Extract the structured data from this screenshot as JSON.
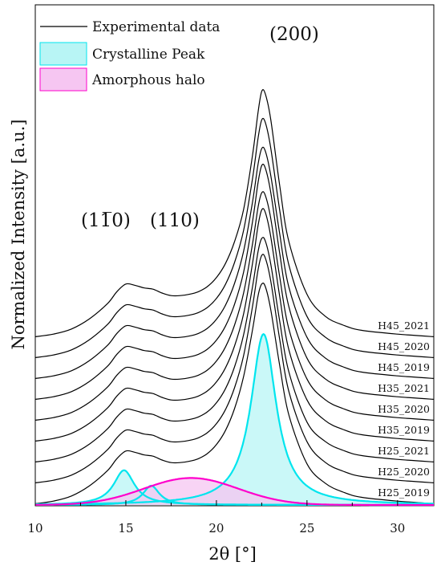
{
  "chart_data": {
    "type": "line",
    "xlabel": "2θ [°]",
    "ylabel": "Normalized Intensity [a.u.]",
    "xlim": [
      10,
      32
    ],
    "xticks": [
      10,
      15,
      20,
      25,
      30
    ],
    "x": [
      10,
      11,
      12,
      13,
      14,
      14.5,
      15,
      15.5,
      16,
      16.5,
      17,
      17.5,
      18,
      18.5,
      19,
      19.5,
      20,
      20.5,
      21,
      21.5,
      22,
      22.3,
      22.5,
      22.7,
      23,
      23.5,
      24,
      25,
      26,
      27,
      28,
      30,
      32
    ],
    "series": [
      {
        "name": "H25_2019",
        "values": [
          0.01,
          0.03,
          0.07,
          0.15,
          0.27,
          0.36,
          0.42,
          0.41,
          0.39,
          0.38,
          0.35,
          0.33,
          0.33,
          0.34,
          0.36,
          0.4,
          0.47,
          0.58,
          0.75,
          1.0,
          1.37,
          1.63,
          1.72,
          1.7,
          1.52,
          1.08,
          0.7,
          0.32,
          0.17,
          0.1,
          0.06,
          0.03,
          0.01
        ]
      },
      {
        "name": "H25_2020",
        "values": [
          0.01,
          0.03,
          0.07,
          0.15,
          0.27,
          0.36,
          0.42,
          0.41,
          0.39,
          0.38,
          0.35,
          0.33,
          0.33,
          0.34,
          0.36,
          0.4,
          0.47,
          0.58,
          0.75,
          1.0,
          1.39,
          1.67,
          1.78,
          1.76,
          1.58,
          1.12,
          0.72,
          0.33,
          0.17,
          0.1,
          0.06,
          0.03,
          0.01
        ]
      },
      {
        "name": "H25_2021",
        "values": [
          0.01,
          0.03,
          0.07,
          0.15,
          0.27,
          0.36,
          0.42,
          0.41,
          0.39,
          0.38,
          0.35,
          0.33,
          0.33,
          0.34,
          0.36,
          0.4,
          0.47,
          0.58,
          0.75,
          1.0,
          1.38,
          1.65,
          1.75,
          1.73,
          1.55,
          1.1,
          0.71,
          0.32,
          0.17,
          0.1,
          0.06,
          0.03,
          0.01
        ]
      },
      {
        "name": "H35_2019",
        "values": [
          0.01,
          0.03,
          0.07,
          0.15,
          0.27,
          0.36,
          0.42,
          0.41,
          0.39,
          0.38,
          0.35,
          0.33,
          0.33,
          0.34,
          0.36,
          0.4,
          0.47,
          0.58,
          0.75,
          1.0,
          1.4,
          1.69,
          1.81,
          1.79,
          1.6,
          1.13,
          0.72,
          0.33,
          0.17,
          0.1,
          0.06,
          0.03,
          0.01
        ]
      },
      {
        "name": "H35_2020",
        "values": [
          0.01,
          0.03,
          0.07,
          0.15,
          0.27,
          0.36,
          0.42,
          0.41,
          0.39,
          0.38,
          0.35,
          0.33,
          0.33,
          0.34,
          0.36,
          0.4,
          0.47,
          0.58,
          0.75,
          1.0,
          1.39,
          1.67,
          1.78,
          1.76,
          1.58,
          1.12,
          0.72,
          0.33,
          0.17,
          0.1,
          0.06,
          0.03,
          0.01
        ]
      },
      {
        "name": "H35_2021",
        "values": [
          0.01,
          0.03,
          0.07,
          0.15,
          0.27,
          0.36,
          0.42,
          0.41,
          0.39,
          0.38,
          0.35,
          0.33,
          0.33,
          0.34,
          0.36,
          0.4,
          0.47,
          0.58,
          0.75,
          1.0,
          1.4,
          1.7,
          1.83,
          1.81,
          1.62,
          1.14,
          0.73,
          0.33,
          0.17,
          0.1,
          0.06,
          0.03,
          0.01
        ]
      },
      {
        "name": "H45_2019",
        "values": [
          0.01,
          0.03,
          0.07,
          0.15,
          0.27,
          0.36,
          0.42,
          0.41,
          0.39,
          0.38,
          0.35,
          0.33,
          0.33,
          0.34,
          0.36,
          0.4,
          0.47,
          0.58,
          0.75,
          1.0,
          1.39,
          1.68,
          1.8,
          1.78,
          1.59,
          1.13,
          0.72,
          0.33,
          0.17,
          0.1,
          0.06,
          0.03,
          0.01
        ]
      },
      {
        "name": "H45_2020",
        "values": [
          0.01,
          0.03,
          0.07,
          0.15,
          0.27,
          0.36,
          0.42,
          0.41,
          0.39,
          0.38,
          0.35,
          0.33,
          0.33,
          0.34,
          0.36,
          0.4,
          0.47,
          0.58,
          0.75,
          1.0,
          1.41,
          1.72,
          1.86,
          1.84,
          1.64,
          1.15,
          0.73,
          0.33,
          0.17,
          0.1,
          0.06,
          0.03,
          0.01
        ]
      },
      {
        "name": "H45_2021",
        "values": [
          0.01,
          0.03,
          0.07,
          0.15,
          0.27,
          0.36,
          0.42,
          0.41,
          0.39,
          0.38,
          0.35,
          0.33,
          0.33,
          0.34,
          0.36,
          0.4,
          0.47,
          0.58,
          0.75,
          1.0,
          1.43,
          1.76,
          1.92,
          1.9,
          1.7,
          1.18,
          0.75,
          0.34,
          0.17,
          0.1,
          0.06,
          0.03,
          0.01
        ]
      }
    ],
    "fit_components": [
      {
        "name": "Crystalline Peak",
        "kind": "crystalline",
        "color": "#00e5ee",
        "fill": "#b8f5f5",
        "center": 22.6,
        "height": 1.33,
        "width": 0.85
      },
      {
        "name": "Crystalline Peak",
        "kind": "crystalline",
        "color": "#00e5ee",
        "fill": "#b8f5f5",
        "center": 14.9,
        "height": 0.27,
        "width": 0.7
      },
      {
        "name": "Crystalline Peak",
        "kind": "crystalline",
        "color": "#00e5ee",
        "fill": "#b8f5f5",
        "center": 16.4,
        "height": 0.15,
        "width": 0.55
      },
      {
        "name": "Amorphous halo",
        "kind": "amorphous",
        "color": "#ff00cc",
        "fill": "#f6c6f2",
        "center": 18.6,
        "height": 0.21,
        "width": 2.6
      }
    ],
    "peak_labels": [
      "(200)",
      "(1̅1̅0)",
      "(110)"
    ],
    "peak_label_texts": {
      "p200": "(200)",
      "p1m10": "(1",
      "p1m10_bar": "1̅",
      "p1m10_end": "0)",
      "p110": "(110)"
    },
    "legend": [
      "Experimental data",
      "Crystalline Peak",
      "Amorphous halo"
    ],
    "legend_placement": "top-left",
    "grid": false,
    "colors": {
      "experimental": "#000000",
      "crystalline_line": "#00e5ee",
      "crystalline_fill": "#b8f5f5",
      "amorphous_line": "#ff00cc",
      "amorphous_fill": "#f6c6f2"
    }
  }
}
